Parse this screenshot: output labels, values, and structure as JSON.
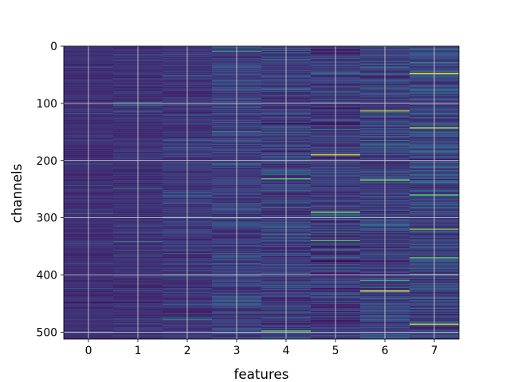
{
  "chart_data": {
    "type": "heatmap",
    "title": "",
    "xlabel": "features",
    "ylabel": "channels",
    "x_categories": [
      "0",
      "1",
      "2",
      "3",
      "4",
      "5",
      "6",
      "7"
    ],
    "y_ticks": [
      0,
      100,
      200,
      300,
      400,
      500
    ],
    "y_range": [
      0,
      512
    ],
    "y_inverted": true,
    "colormap": "viridis",
    "grid": true,
    "grid_color": "#d9d9d9",
    "column_base_level": [
      0.14,
      0.15,
      0.16,
      0.19,
      0.18,
      0.17,
      0.19,
      0.2
    ],
    "column_variation": [
      0.05,
      0.06,
      0.08,
      0.1,
      0.12,
      0.13,
      0.13,
      0.14
    ],
    "highlights": [
      {
        "feature": 0,
        "channel": 448,
        "value": 0.05
      },
      {
        "feature": 1,
        "channel": 448,
        "value": 0.05
      },
      {
        "feature": 1,
        "channel": 420,
        "value": 0.08
      },
      {
        "feature": 2,
        "channel": 400,
        "value": 0.55
      },
      {
        "feature": 2,
        "channel": 478,
        "value": 0.4
      },
      {
        "feature": 3,
        "channel": 9,
        "value": 0.55
      },
      {
        "feature": 3,
        "channel": 300,
        "value": 0.5
      },
      {
        "feature": 4,
        "channel": 232,
        "value": 0.7
      },
      {
        "feature": 4,
        "channel": 498,
        "value": 0.75
      },
      {
        "feature": 4,
        "channel": 135,
        "value": 0.02
      },
      {
        "feature": 5,
        "channel": 190,
        "value": 0.97
      },
      {
        "feature": 5,
        "channel": 290,
        "value": 0.8
      },
      {
        "feature": 5,
        "channel": 340,
        "value": 0.7
      },
      {
        "feature": 5,
        "channel": 376,
        "value": 0.0
      },
      {
        "feature": 5,
        "channel": 108,
        "value": 0.02
      },
      {
        "feature": 6,
        "channel": 113,
        "value": 0.9
      },
      {
        "feature": 6,
        "channel": 234,
        "value": 0.8
      },
      {
        "feature": 6,
        "channel": 428,
        "value": 0.95
      },
      {
        "feature": 6,
        "channel": 410,
        "value": 0.6
      },
      {
        "feature": 7,
        "channel": 48,
        "value": 0.95
      },
      {
        "feature": 7,
        "channel": 143,
        "value": 0.85
      },
      {
        "feature": 7,
        "channel": 260,
        "value": 0.7
      },
      {
        "feature": 7,
        "channel": 320,
        "value": 0.8
      },
      {
        "feature": 7,
        "channel": 370,
        "value": 0.75
      },
      {
        "feature": 7,
        "channel": 486,
        "value": 0.9
      }
    ]
  }
}
